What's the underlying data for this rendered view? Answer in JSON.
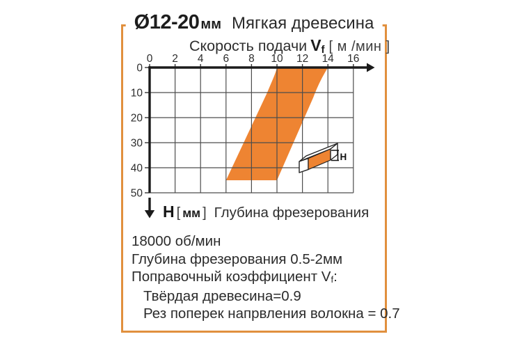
{
  "title": {
    "diameter": "Ø12-20",
    "unit": "мм",
    "material": "Мягкая древесина"
  },
  "x_axis": {
    "label_prefix": "Скорость подачи",
    "symbol": "V",
    "symbol_sub": "f",
    "unit_bracket": "[ м /мин ]"
  },
  "y_axis": {
    "symbol": "H",
    "bracket_open": "[",
    "unit": "мм",
    "bracket_close": "]",
    "label": "Глубина фрезерования"
  },
  "icon": {
    "label": "H"
  },
  "notes": {
    "rpm_line": "18000 об/мин",
    "depth_line": "Глубина фрезерования 0.5-2мм",
    "coef_prefix": "Поправочный коэффициент ",
    "coef_symbol": "V",
    "coef_sub": "f",
    "coef_suffix": ":",
    "hard_wood_line": "Твёрдая древесина=0.9",
    "cross_grain_line": "Рез поперек напрвления волокна = 0.7"
  },
  "colors": {
    "band": "#EE8432",
    "border": "#E1903E",
    "axis": "#1b1b1b",
    "grid": "#4d4d4d",
    "text": "#2b2b2b",
    "tick_labels": "#2d2d2d"
  },
  "chart_data": {
    "type": "area",
    "title": "Ø12-20мм Мягкая древесина",
    "xlabel": "Скорость подачи Vf [м /мин]",
    "ylabel": "H [мм] Глубина фрезерования",
    "xlim": [
      0,
      16.5
    ],
    "ylim": [
      0,
      52
    ],
    "y_inverted": true,
    "x_ticks": [
      0,
      2,
      4,
      6,
      8,
      10,
      12,
      14,
      16
    ],
    "y_ticks": [
      0,
      10,
      20,
      30,
      40,
      50
    ],
    "grid": true,
    "legend": "none",
    "band": {
      "name": "recommended-operating-zone",
      "left_edge": [
        [
          10,
          0
        ],
        [
          6,
          45
        ]
      ],
      "right_edge": [
        [
          14,
          0
        ],
        [
          10,
          45
        ]
      ],
      "fill": "#EE8432"
    },
    "annotations": [
      "18000 об/мин",
      "Глубина фрезерования 0.5-2мм",
      "Поправочный коэффициент Vf:",
      "Твёрдая древесина=0.9",
      "Рез поперек напрвления волокна = 0.7"
    ]
  }
}
